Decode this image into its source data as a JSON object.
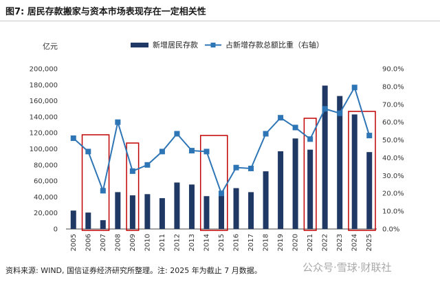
{
  "title": "图7: 居民存款搬家与资本市场表现存在一定相关性",
  "source_note": "资料来源: WIND, 国信证券经济研究所整理。注: 2025 年为截止 7 月数据。",
  "watermark": "公众号·雪球·财联社",
  "colors": {
    "bar": "#1f3864",
    "line": "#2e75b6",
    "highlight": "#c00000"
  },
  "chart_data": {
    "type": "bar",
    "categories": [
      "2005",
      "2006",
      "2007",
      "2008",
      "2009",
      "2010",
      "2011",
      "2012",
      "2013",
      "2014",
      "2015",
      "2016",
      "2017",
      "2018",
      "2019",
      "2020",
      "2021",
      "2022",
      "2023",
      "2024",
      "2025"
    ],
    "y_unit": "亿元",
    "ylim": [
      0,
      200000
    ],
    "y_ticks": [
      "0",
      "20,000",
      "40,000",
      "60,000",
      "80,000",
      "100,000",
      "120,000",
      "140,000",
      "160,000",
      "180,000",
      "200,000"
    ],
    "y2lim": [
      0,
      90
    ],
    "y2_ticks": [
      "0.0%",
      "10.0%",
      "20.0%",
      "30.0%",
      "40.0%",
      "50.0%",
      "60.0%",
      "70.0%",
      "80.0%",
      "90.0%"
    ],
    "legend_position": "top",
    "grid": false,
    "series": [
      {
        "name": "新增居民存款",
        "type": "bar",
        "axis": "left",
        "values": [
          23000,
          20500,
          11000,
          46000,
          42000,
          43500,
          38500,
          58000,
          55500,
          41000,
          42000,
          51000,
          46000,
          72000,
          97000,
          113000,
          99000,
          179000,
          166000,
          143000,
          96000
        ]
      },
      {
        "name": "占新增存款总额比重（右轴）",
        "type": "line",
        "axis": "right",
        "values": [
          51,
          43.5,
          21.5,
          60,
          32.5,
          36,
          43.5,
          53.5,
          44,
          43.5,
          20,
          34.5,
          34,
          53.5,
          62.5,
          57,
          50.5,
          67.5,
          65,
          79.5,
          52.5
        ]
      }
    ],
    "highlight_ranges": [
      [
        "2006",
        "2007"
      ],
      [
        "2009",
        "2009"
      ],
      [
        "2014",
        "2015"
      ],
      [
        "2021",
        "2021"
      ],
      [
        "2024",
        "2025"
      ]
    ]
  }
}
